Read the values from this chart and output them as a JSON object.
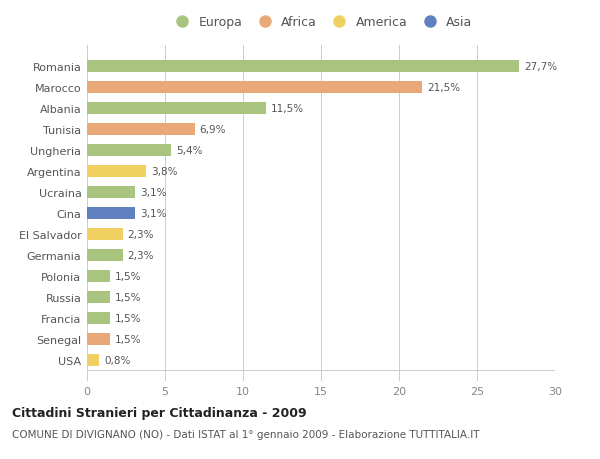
{
  "countries": [
    "Romania",
    "Marocco",
    "Albania",
    "Tunisia",
    "Ungheria",
    "Argentina",
    "Ucraina",
    "Cina",
    "El Salvador",
    "Germania",
    "Polonia",
    "Russia",
    "Francia",
    "Senegal",
    "USA"
  ],
  "values": [
    27.7,
    21.5,
    11.5,
    6.9,
    5.4,
    3.8,
    3.1,
    3.1,
    2.3,
    2.3,
    1.5,
    1.5,
    1.5,
    1.5,
    0.8
  ],
  "labels": [
    "27,7%",
    "21,5%",
    "11,5%",
    "6,9%",
    "5,4%",
    "3,8%",
    "3,1%",
    "3,1%",
    "2,3%",
    "2,3%",
    "1,5%",
    "1,5%",
    "1,5%",
    "1,5%",
    "0,8%"
  ],
  "continents": [
    "Europa",
    "Africa",
    "Europa",
    "Africa",
    "Europa",
    "America",
    "Europa",
    "Asia",
    "America",
    "Europa",
    "Europa",
    "Europa",
    "Europa",
    "Africa",
    "America"
  ],
  "colors": {
    "Europa": "#a8c47e",
    "Africa": "#e8a878",
    "America": "#f0d060",
    "Asia": "#6080c0"
  },
  "xlim": [
    0,
    30
  ],
  "xticks": [
    0,
    5,
    10,
    15,
    20,
    25,
    30
  ],
  "title": "Cittadini Stranieri per Cittadinanza - 2009",
  "subtitle": "COMUNE DI DIVIGNANO (NO) - Dati ISTAT al 1° gennaio 2009 - Elaborazione TUTTITALIA.IT",
  "background_color": "#ffffff",
  "grid_color": "#cccccc",
  "bar_height": 0.55,
  "legend_order": [
    "Europa",
    "Africa",
    "America",
    "Asia"
  ]
}
